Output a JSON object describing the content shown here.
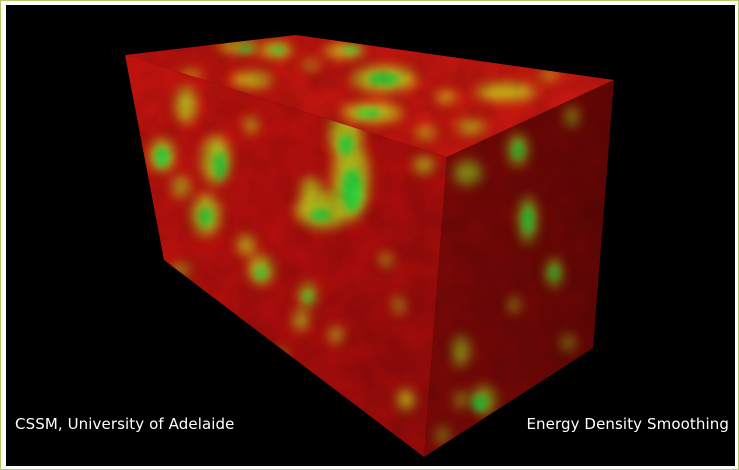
{
  "image": {
    "subject": "3D lattice cube rendering",
    "colors": {
      "background": "#000000",
      "base": "#b30f0f",
      "mid": "#c9d11e",
      "hot": "#2fd13a",
      "frame_border": "#b5c96a"
    }
  },
  "captions": {
    "left": "CSSM, University of Adelaide",
    "right": "Energy Density Smoothing"
  }
}
